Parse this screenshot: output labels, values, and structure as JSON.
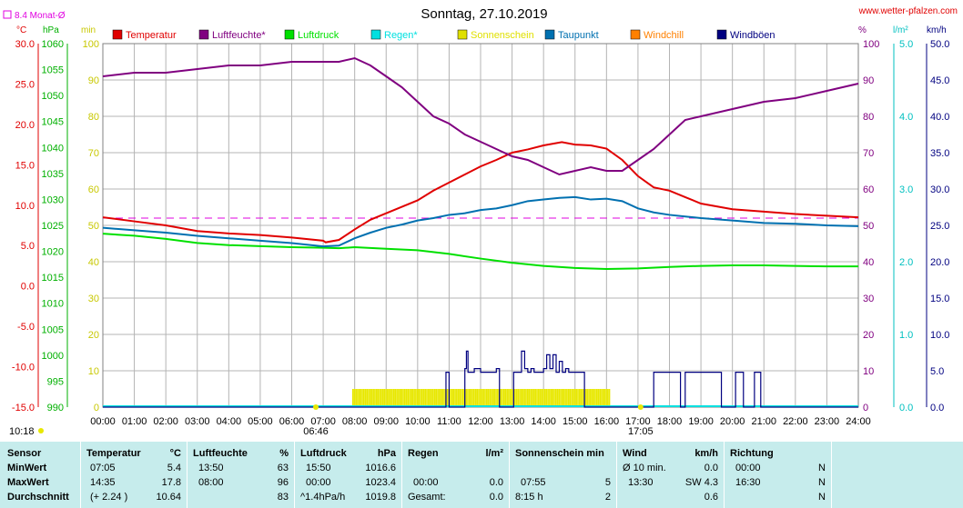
{
  "header": {
    "title": "Sonntag, 27.10.2019",
    "site": "www.wetter-pfalzen.com",
    "avg_note": "8.4 Monat-Ø"
  },
  "units": {
    "c": "°C",
    "hpa": "hPa",
    "min": "min",
    "pct": "%",
    "lm2": "l/m²",
    "kmh": "km/h"
  },
  "legend": [
    {
      "label": "Temperatur",
      "color": "#e00000"
    },
    {
      "label": "Luftfeuchte*",
      "color": "#800080"
    },
    {
      "label": "Luftdruck",
      "color": "#00e000"
    },
    {
      "label": "Regen*",
      "color": "#00e0e0"
    },
    {
      "label": "Sonnenschein",
      "color": "#e0e000"
    },
    {
      "label": "Taupunkt",
      "color": "#0070b0"
    },
    {
      "label": "Windchill",
      "color": "#ff8000"
    },
    {
      "label": "Windböen",
      "color": "#000080"
    }
  ],
  "axes": {
    "temp_ticks": [
      "30.0",
      "25.0",
      "20.0",
      "15.0",
      "10.0",
      "5.0",
      "0.0",
      "-5.0",
      "-10.0",
      "-15.0"
    ],
    "hpa_ticks": [
      "1060",
      "1055",
      "1050",
      "1045",
      "1040",
      "1035",
      "1030",
      "1025",
      "1020",
      "1015",
      "1010",
      "1005",
      "1000",
      "995",
      "990"
    ],
    "min_ticks": [
      "100",
      "90",
      "80",
      "70",
      "60",
      "50",
      "40",
      "30",
      "20",
      "10",
      "0"
    ],
    "pct_ticks": [
      "100",
      "90",
      "80",
      "70",
      "60",
      "50",
      "40",
      "30",
      "20",
      "10",
      "0"
    ],
    "rain_ticks": [
      "5.0",
      "4.0",
      "3.0",
      "2.0",
      "1.0",
      "0.0"
    ],
    "kmh_ticks": [
      "50.0",
      "45.0",
      "40.0",
      "35.0",
      "30.0",
      "25.0",
      "20.0",
      "15.0",
      "10.0",
      "5.0",
      "0.0"
    ],
    "x_ticks": [
      "00:00",
      "01:00",
      "02:00",
      "03:00",
      "04:00",
      "05:00",
      "06:00",
      "07:00",
      "08:00",
      "09:00",
      "10:00",
      "11:00",
      "12:00",
      "13:00",
      "14:00",
      "15:00",
      "16:00",
      "17:00",
      "18:00",
      "19:00",
      "20:00",
      "21:00",
      "22:00",
      "23:00",
      "24:00"
    ],
    "sunrise": "06:46",
    "sunset": "17:05",
    "now": "10:18"
  },
  "colors": {
    "temp": "#e00000",
    "hum": "#800080",
    "press": "#00e000",
    "rain": "#00e0e0",
    "sun": "#e8e800",
    "dew": "#0070b0",
    "gust": "#000080",
    "avg": "#e000e0",
    "grid": "#b4b4b4",
    "table_bg": "#c6ecec"
  },
  "chart_data": {
    "type": "line",
    "title": "Sonntag, 27.10.2019",
    "x_range": [
      0,
      24
    ],
    "monthly_avg_temp": 8.4,
    "series": [
      {
        "name": "Temperatur",
        "axis": "temp",
        "ylim": [
          -15,
          30
        ],
        "x": [
          0,
          1,
          2,
          3,
          4,
          5,
          6,
          7,
          7.08,
          7.5,
          8,
          8.5,
          9,
          9.5,
          10,
          10.5,
          11,
          11.5,
          12,
          12.5,
          13,
          13.5,
          14,
          14.58,
          15,
          15.5,
          16,
          16.5,
          17,
          17.5,
          18,
          18.5,
          19,
          20,
          21,
          22,
          23,
          24
        ],
        "y": [
          8.5,
          8.0,
          7.5,
          6.8,
          6.5,
          6.3,
          6.0,
          5.6,
          5.4,
          5.7,
          7.0,
          8.2,
          9.0,
          9.8,
          10.6,
          11.8,
          12.8,
          13.8,
          14.8,
          15.6,
          16.5,
          16.9,
          17.4,
          17.8,
          17.5,
          17.4,
          17.0,
          15.6,
          13.6,
          12.2,
          11.8,
          11.0,
          10.2,
          9.5,
          9.2,
          8.9,
          8.7,
          8.5
        ]
      },
      {
        "name": "Luftfeuchte*",
        "axis": "pct",
        "ylim": [
          0,
          100
        ],
        "x": [
          0,
          1,
          2,
          3,
          4,
          5,
          6,
          7,
          7.5,
          8,
          8.5,
          9,
          9.5,
          10,
          10.5,
          11,
          11.5,
          12,
          12.5,
          13,
          13.5,
          14,
          14.5,
          15,
          15.5,
          16,
          16.5,
          17,
          17.5,
          18,
          18.5,
          19,
          20,
          21,
          22,
          23,
          24
        ],
        "y": [
          91,
          92,
          92,
          93,
          94,
          94,
          95,
          95,
          95,
          96,
          94,
          91,
          88,
          84,
          80,
          78,
          75,
          73,
          71,
          69,
          68,
          66,
          64,
          65,
          66,
          65,
          65,
          68,
          71,
          75,
          79,
          80,
          82,
          84,
          85,
          87,
          89
        ]
      },
      {
        "name": "Luftdruck",
        "axis": "hpa",
        "ylim": [
          990,
          1060
        ],
        "x": [
          0,
          1,
          2,
          3,
          4,
          5,
          6,
          7,
          7.5,
          8,
          9,
          10,
          11,
          12,
          13,
          14,
          15,
          16,
          17,
          18,
          19,
          20,
          21,
          22,
          23,
          24
        ],
        "y": [
          1023.4,
          1023,
          1022.4,
          1021.6,
          1021.2,
          1021,
          1020.8,
          1020.7,
          1020.6,
          1020.8,
          1020.5,
          1020.2,
          1019.5,
          1018.6,
          1017.8,
          1017.2,
          1016.8,
          1016.6,
          1016.7,
          1017,
          1017.2,
          1017.3,
          1017.3,
          1017.2,
          1017.1,
          1017.1
        ]
      },
      {
        "name": "Taupunkt",
        "axis": "temp",
        "ylim": [
          -15,
          30
        ],
        "x": [
          0,
          1,
          2,
          3,
          4,
          5,
          6,
          7,
          7.5,
          8,
          8.5,
          9,
          9.5,
          10,
          10.5,
          11,
          11.5,
          12,
          12.5,
          13,
          13.5,
          14,
          14.5,
          15,
          15.5,
          16,
          16.5,
          17,
          17.5,
          18,
          18.5,
          19,
          20,
          21,
          22,
          23,
          24
        ],
        "y": [
          7.2,
          6.9,
          6.6,
          6.2,
          5.9,
          5.6,
          5.3,
          4.9,
          5.0,
          5.9,
          6.6,
          7.2,
          7.6,
          8.1,
          8.4,
          8.8,
          9.0,
          9.4,
          9.6,
          10.0,
          10.5,
          10.7,
          10.9,
          11.0,
          10.7,
          10.8,
          10.5,
          9.6,
          9.1,
          8.8,
          8.6,
          8.4,
          8.1,
          7.8,
          7.7,
          7.5,
          7.4
        ]
      },
      {
        "name": "Windböen",
        "axis": "kmh",
        "ylim": [
          0,
          50
        ],
        "x": [
          0,
          10.85,
          10.9,
          11,
          11.05,
          11.15,
          11.5,
          11.55,
          11.6,
          11.7,
          11.8,
          12,
          12.3,
          12.5,
          12.6,
          12.7,
          12.8,
          12.9,
          13,
          13.05,
          13.2,
          13.3,
          13.4,
          13.5,
          13.6,
          13.7,
          13.8,
          13.9,
          14.0,
          14.1,
          14.2,
          14.3,
          14.4,
          14.5,
          14.6,
          14.7,
          14.8,
          14.9,
          15,
          15.2,
          15.3,
          15.4,
          17.45,
          17.5,
          18.3,
          18.35,
          18.4,
          18.5,
          19.6,
          19.65,
          19.7,
          20.0,
          20.1,
          20.2,
          20.35,
          20.5,
          20.6,
          20.7,
          20.8,
          20.9,
          21.0,
          21.1,
          21.2,
          24
        ],
        "y": [
          0,
          0,
          4.8,
          0,
          0,
          0,
          5.3,
          7.7,
          4.8,
          4.8,
          5.3,
          4.8,
          4.8,
          5.3,
          0,
          0,
          0,
          0,
          0,
          4.8,
          4.8,
          7.7,
          5.3,
          4.8,
          5.3,
          4.8,
          4.8,
          4.8,
          5.3,
          7.2,
          5.3,
          7.2,
          4.8,
          6.3,
          4.8,
          5.3,
          4.8,
          4.8,
          4.8,
          4.8,
          0,
          0,
          0,
          4.8,
          4.8,
          0,
          0,
          4.8,
          4.8,
          0,
          0,
          0,
          4.8,
          4.8,
          0,
          0,
          0,
          4.8,
          4.8,
          0,
          0,
          0,
          0,
          0
        ]
      }
    ],
    "sunshine_minutes": {
      "start": 7.92,
      "end": 16.08,
      "value": 5
    }
  },
  "stats": {
    "sensor": {
      "title": "Sensor",
      "rows": [
        "MinWert",
        "MaxWert",
        "Durchschnitt"
      ]
    },
    "temperatur": {
      "title": "Temperatur",
      "unit": "°C",
      "rows": [
        [
          "07:05",
          "5.4"
        ],
        [
          "14:35",
          "17.8"
        ],
        [
          "(+ 2.24 )",
          "10.64"
        ]
      ]
    },
    "luftfeuchte": {
      "title": "Luftfeuchte",
      "unit": "%",
      "rows": [
        [
          "13:50",
          "63"
        ],
        [
          "08:00",
          "96"
        ],
        [
          "",
          "83"
        ]
      ]
    },
    "luftdruck": {
      "title": "Luftdruck",
      "unit": "hPa",
      "rows": [
        [
          "15:50",
          "1016.6"
        ],
        [
          "00:00",
          "1023.4"
        ],
        [
          "^1.4hPa/h",
          "1019.8"
        ]
      ]
    },
    "regen": {
      "title": "Regen",
      "unit": "l/m²",
      "rows": [
        [
          "",
          ""
        ],
        [
          "00:00",
          "0.0"
        ],
        [
          "Gesamt:",
          "0.0"
        ]
      ]
    },
    "sonnenschein": {
      "title": "Sonnenschein min",
      "rows": [
        [
          "",
          ""
        ],
        [
          "07:55",
          "5"
        ],
        [
          "8:15 h",
          "2"
        ]
      ]
    },
    "wind": {
      "title": "Wind",
      "unit": "km/h",
      "rows": [
        [
          "Ø 10 min.",
          "0.0"
        ],
        [
          "13:30",
          "SW 4.3"
        ],
        [
          "",
          "0.6"
        ]
      ]
    },
    "richtung": {
      "title": "Richtung",
      "rows": [
        [
          "00:00",
          "N"
        ],
        [
          "16:30",
          "N"
        ],
        [
          "",
          "N"
        ]
      ]
    }
  }
}
